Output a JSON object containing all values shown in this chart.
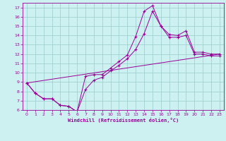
{
  "title": "",
  "xlabel": "Windchill (Refroidissement éolien,°C)",
  "ylabel": "",
  "bg_color": "#cdf0f0",
  "line_color": "#990099",
  "grid_color": "#99cccc",
  "xlim": [
    -0.5,
    23.5
  ],
  "ylim": [
    6,
    17.5
  ],
  "xticks": [
    0,
    1,
    2,
    3,
    4,
    5,
    6,
    7,
    8,
    9,
    10,
    11,
    12,
    13,
    14,
    15,
    16,
    17,
    18,
    19,
    20,
    21,
    22,
    23
  ],
  "yticks": [
    6,
    7,
    8,
    9,
    10,
    11,
    12,
    13,
    14,
    15,
    16,
    17
  ],
  "line1_x": [
    0,
    1,
    2,
    3,
    4,
    5,
    6,
    7,
    8,
    9,
    10,
    11,
    12,
    13,
    14,
    15,
    16,
    17,
    18,
    19,
    20,
    21,
    22,
    23
  ],
  "line1_y": [
    8.9,
    7.8,
    7.2,
    7.2,
    6.5,
    6.4,
    5.8,
    9.6,
    9.8,
    9.8,
    10.5,
    11.2,
    11.9,
    13.9,
    16.6,
    17.2,
    15.0,
    14.1,
    14.0,
    14.5,
    12.2,
    12.2,
    12.0,
    12.0
  ],
  "line2_x": [
    0,
    1,
    2,
    3,
    4,
    5,
    6,
    7,
    8,
    9,
    10,
    11,
    12,
    13,
    14,
    15,
    16,
    17,
    18,
    19,
    20,
    21,
    22,
    23
  ],
  "line2_y": [
    8.9,
    7.8,
    7.2,
    7.2,
    6.5,
    6.4,
    5.8,
    8.2,
    9.2,
    9.5,
    10.2,
    10.8,
    11.5,
    12.5,
    14.2,
    16.6,
    15.0,
    13.8,
    13.8,
    14.0,
    12.0,
    12.0,
    11.8,
    11.8
  ],
  "line3_x": [
    0,
    23
  ],
  "line3_y": [
    8.9,
    12.0
  ]
}
